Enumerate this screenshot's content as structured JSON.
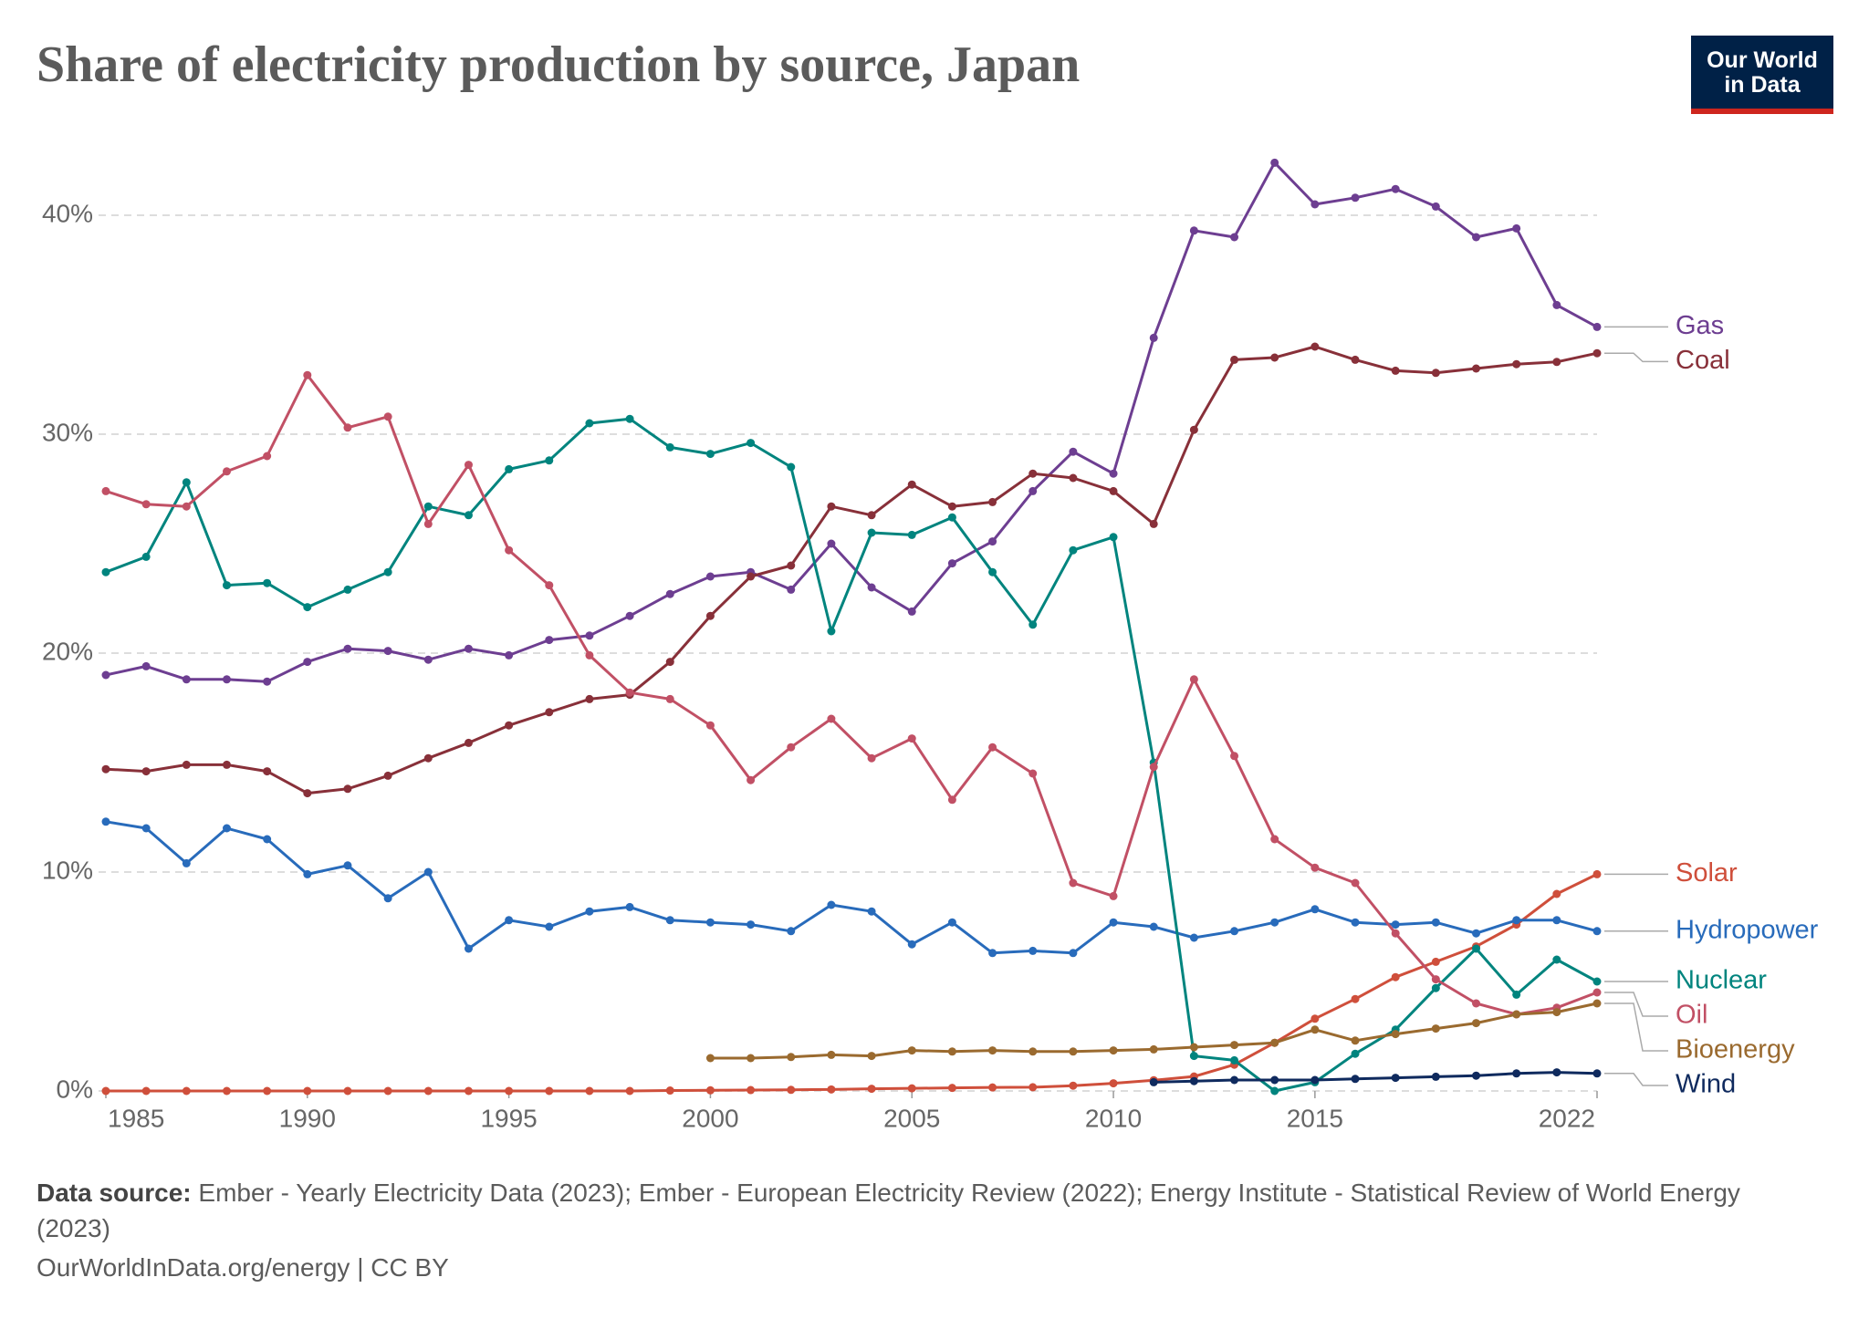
{
  "logo": [
    "Our World",
    "in Data"
  ],
  "chart_data": {
    "type": "line",
    "title": "Share of electricity production by source, Japan",
    "source_label": "Data source:",
    "source": "Ember - Yearly Electricity Data (2023); Ember - European Electricity Review (2022); Energy Institute - Statistical Review of World Energy (2023)",
    "footer": "OurWorldInData.org/energy | CC BY",
    "x": [
      1985,
      1986,
      1987,
      1988,
      1989,
      1990,
      1991,
      1992,
      1993,
      1994,
      1995,
      1996,
      1997,
      1998,
      1999,
      2000,
      2001,
      2002,
      2003,
      2004,
      2005,
      2006,
      2007,
      2008,
      2009,
      2010,
      2011,
      2012,
      2013,
      2014,
      2015,
      2016,
      2017,
      2018,
      2019,
      2020,
      2021,
      2022
    ],
    "xlim": [
      1985,
      2022
    ],
    "xticks": [
      1985,
      1990,
      1995,
      2000,
      2005,
      2010,
      2015,
      2022
    ],
    "ylim": [
      0,
      44
    ],
    "yticks": [
      {
        "value": 0,
        "label": "0%"
      },
      {
        "value": 10,
        "label": "10%"
      },
      {
        "value": 20,
        "label": "20%"
      },
      {
        "value": 30,
        "label": "30%"
      },
      {
        "value": 40,
        "label": "40%"
      }
    ],
    "grid": true,
    "series": [
      {
        "name": "Gas",
        "color": "#6d3e91",
        "values": [
          19.0,
          19.4,
          18.8,
          18.8,
          18.7,
          19.6,
          20.2,
          20.1,
          19.7,
          20.2,
          19.9,
          20.6,
          20.8,
          21.7,
          22.7,
          23.5,
          23.7,
          22.9,
          25.0,
          23.0,
          21.9,
          24.1,
          25.1,
          27.4,
          29.2,
          28.2,
          34.4,
          39.3,
          39.0,
          42.4,
          40.5,
          40.8,
          41.2,
          40.4,
          39.0,
          39.4,
          35.9,
          34.9
        ]
      },
      {
        "name": "Coal",
        "color": "#883039",
        "values": [
          14.7,
          14.6,
          14.9,
          14.9,
          14.6,
          13.6,
          13.8,
          14.4,
          15.2,
          15.9,
          16.7,
          17.3,
          17.9,
          18.1,
          19.6,
          21.7,
          23.5,
          24.0,
          26.7,
          26.3,
          27.7,
          26.7,
          26.9,
          28.2,
          28.0,
          27.4,
          25.9,
          30.2,
          33.4,
          33.5,
          34.0,
          33.4,
          32.9,
          32.8,
          33.0,
          33.2,
          33.3,
          33.7
        ]
      },
      {
        "name": "Solar",
        "color": "#cf4f3b",
        "values": [
          0,
          0,
          0,
          0,
          0,
          0,
          0,
          0,
          0,
          0,
          0,
          0,
          0,
          0,
          0.02,
          0.03,
          0.04,
          0.05,
          0.07,
          0.1,
          0.12,
          0.14,
          0.16,
          0.17,
          0.24,
          0.35,
          0.49,
          0.66,
          1.2,
          2.2,
          3.3,
          4.2,
          5.2,
          5.9,
          6.6,
          7.6,
          9.0,
          9.9
        ]
      },
      {
        "name": "Hydropower",
        "color": "#286bbb",
        "values": [
          12.3,
          12.0,
          10.4,
          12.0,
          11.5,
          9.9,
          10.3,
          8.8,
          10.0,
          6.5,
          7.8,
          7.5,
          8.2,
          8.4,
          7.8,
          7.7,
          7.6,
          7.3,
          8.5,
          8.2,
          6.7,
          7.7,
          6.3,
          6.4,
          6.3,
          7.7,
          7.5,
          7.0,
          7.3,
          7.7,
          8.3,
          7.7,
          7.6,
          7.7,
          7.2,
          7.8,
          7.8,
          7.3
        ]
      },
      {
        "name": "Nuclear",
        "color": "#00847e",
        "values": [
          23.7,
          24.4,
          27.8,
          23.1,
          23.2,
          22.1,
          22.9,
          23.7,
          26.7,
          26.3,
          28.4,
          28.8,
          30.5,
          30.7,
          29.4,
          29.1,
          29.6,
          28.5,
          21.0,
          25.5,
          25.4,
          26.2,
          23.7,
          21.3,
          24.7,
          25.3,
          15.0,
          1.6,
          1.4,
          0.0,
          0.4,
          1.7,
          2.8,
          4.7,
          6.5,
          4.4,
          6.0,
          5.0
        ]
      },
      {
        "name": "Oil",
        "color": "#c15065",
        "values": [
          27.4,
          26.8,
          26.7,
          28.3,
          29.0,
          32.7,
          30.3,
          30.8,
          25.9,
          28.6,
          24.7,
          23.1,
          19.9,
          18.2,
          17.9,
          16.7,
          14.2,
          15.7,
          17.0,
          15.2,
          16.1,
          13.3,
          15.7,
          14.5,
          9.5,
          8.9,
          14.8,
          18.8,
          15.3,
          11.5,
          10.2,
          9.5,
          7.2,
          5.1,
          4.0,
          3.5,
          3.8,
          4.5
        ]
      },
      {
        "name": "Bioenergy",
        "color": "#9a6a2f",
        "values": [
          null,
          null,
          null,
          null,
          null,
          null,
          null,
          null,
          null,
          null,
          null,
          null,
          null,
          null,
          null,
          1.5,
          1.5,
          1.55,
          1.65,
          1.6,
          1.85,
          1.8,
          1.85,
          1.8,
          1.8,
          1.85,
          1.9,
          2.0,
          2.1,
          2.2,
          2.8,
          2.3,
          2.6,
          2.85,
          3.1,
          3.5,
          3.6,
          4.0
        ]
      },
      {
        "name": "Wind",
        "color": "#0f2a5e",
        "values": [
          null,
          null,
          null,
          null,
          null,
          null,
          null,
          null,
          null,
          null,
          null,
          null,
          null,
          null,
          null,
          null,
          null,
          null,
          null,
          null,
          null,
          null,
          null,
          null,
          null,
          null,
          0.4,
          0.45,
          0.5,
          0.5,
          0.5,
          0.55,
          0.6,
          0.65,
          0.7,
          0.8,
          0.85,
          0.8
        ]
      }
    ]
  }
}
